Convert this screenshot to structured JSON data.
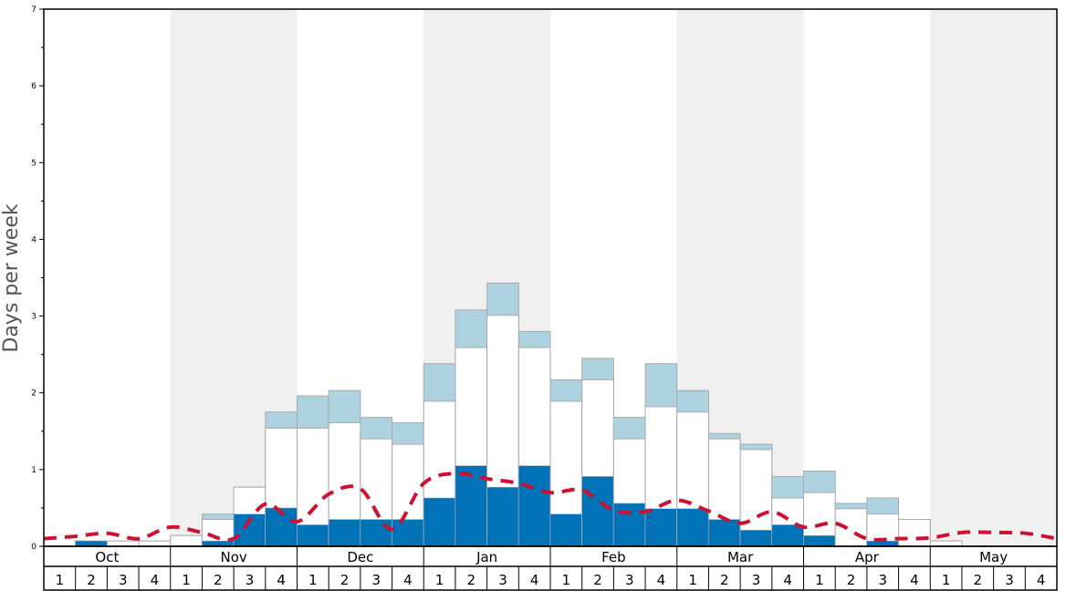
{
  "chart_data": {
    "type": "bar",
    "title": "",
    "xlabel": "",
    "ylabel": "Days per week",
    "ylim": [
      0,
      7
    ],
    "yticks": [
      "0",
      "1",
      "2",
      "3",
      "4",
      "5",
      "6",
      "7"
    ],
    "months": [
      "Oct",
      "Nov",
      "Dec",
      "Jan",
      "Feb",
      "Mar",
      "Apr",
      "May"
    ],
    "weeks": [
      "1",
      "2",
      "3",
      "4"
    ],
    "colors": {
      "dark_blue": "#0072b8",
      "white": "#ffffff",
      "light_blue": "#acd3df",
      "shade_band": "#f0f0f0",
      "average_line": "#cc1133",
      "bar_outline": "#aaaaaa"
    },
    "series": [
      {
        "values": [
          0.0,
          0.07,
          0.0,
          0.0,
          0.0,
          0.07,
          0.42,
          0.5,
          0.28,
          0.35,
          0.35,
          0.35,
          0.63,
          1.05,
          0.77,
          1.05,
          0.42,
          0.91,
          0.56,
          0.49,
          0.49,
          0.35,
          0.21,
          0.28,
          0.14,
          0.0,
          0.07,
          0.0,
          0.0,
          0.0,
          0.0,
          0.0
        ]
      },
      {
        "values": [
          0.0,
          0.07,
          0.07,
          0.07,
          0.14,
          0.35,
          0.77,
          1.54,
          1.54,
          1.61,
          1.4,
          1.33,
          1.89,
          2.59,
          3.01,
          2.59,
          1.89,
          2.17,
          1.4,
          1.82,
          1.75,
          1.4,
          1.26,
          0.63,
          0.7,
          0.49,
          0.42,
          0.35,
          0.07,
          0.0,
          0.0,
          0.0
        ]
      },
      {
        "values": [
          0.0,
          0.07,
          0.07,
          0.07,
          0.14,
          0.42,
          0.77,
          1.75,
          1.96,
          2.03,
          1.68,
          1.61,
          2.38,
          3.08,
          3.43,
          2.8,
          2.17,
          2.45,
          1.68,
          2.38,
          2.03,
          1.47,
          1.33,
          0.91,
          0.98,
          0.56,
          0.63,
          0.35,
          0.07,
          0.0,
          0.0,
          0.0
        ]
      },
      {
        "values": [
          0.1,
          0.13,
          0.17,
          0.1,
          0.25,
          0.18,
          0.1,
          0.55,
          0.32,
          0.68,
          0.75,
          0.22,
          0.82,
          0.95,
          0.88,
          0.82,
          0.7,
          0.73,
          0.47,
          0.45,
          0.6,
          0.46,
          0.3,
          0.45,
          0.25,
          0.3,
          0.1,
          0.1,
          0.11,
          0.18,
          0.18,
          0.17,
          0.1
        ]
      }
    ]
  }
}
